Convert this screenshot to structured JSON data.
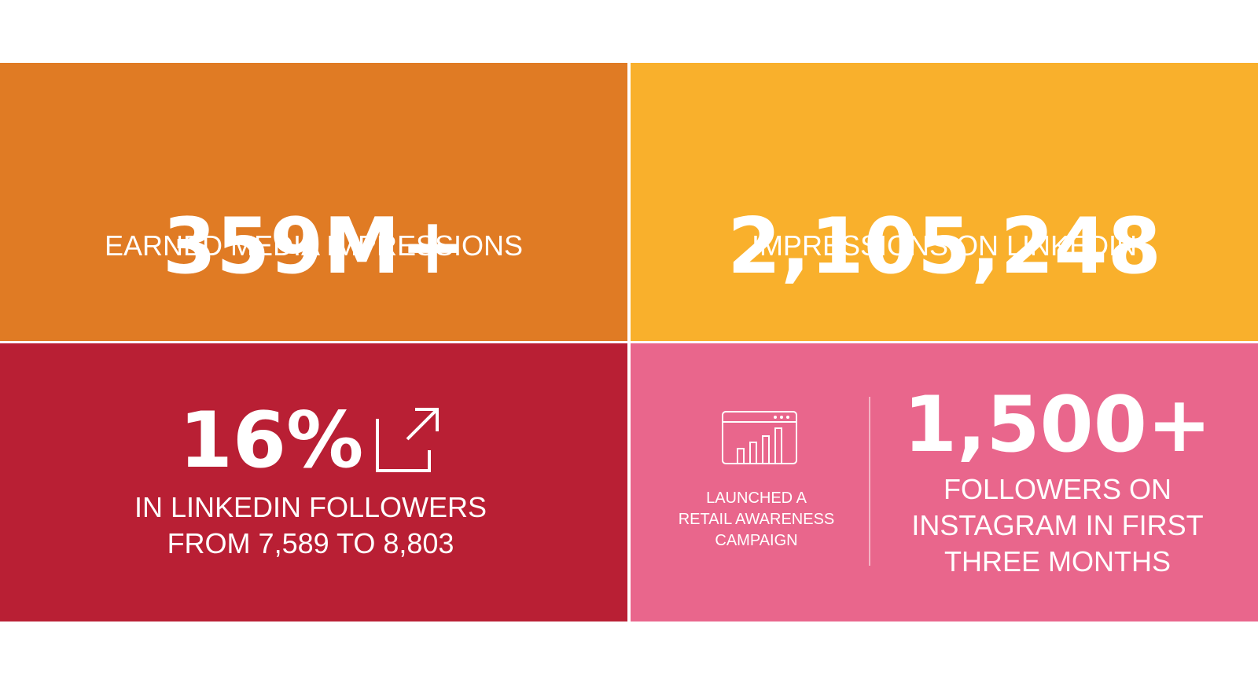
{
  "tiles": [
    {
      "stat": "359M+",
      "label": [
        "EARNED MEDIA IMPRESSIONS"
      ]
    },
    {
      "stat": "2,105,248",
      "label": [
        "IMPRESSIONS ON LINKEDIN"
      ]
    },
    {
      "stat": "16%",
      "label": [
        "IN LINKEDIN FOLLOWERS",
        "FROM 7,589 TO 8,803"
      ]
    },
    {
      "stat": "1,500+",
      "label": [
        "FOLLOWERS ON",
        "INSTAGRAM IN FIRST",
        "THREE MONTHS"
      ],
      "note": [
        "LAUNCHED A",
        "RETAIL AWARENESS",
        "CAMPAIGN"
      ]
    }
  ]
}
